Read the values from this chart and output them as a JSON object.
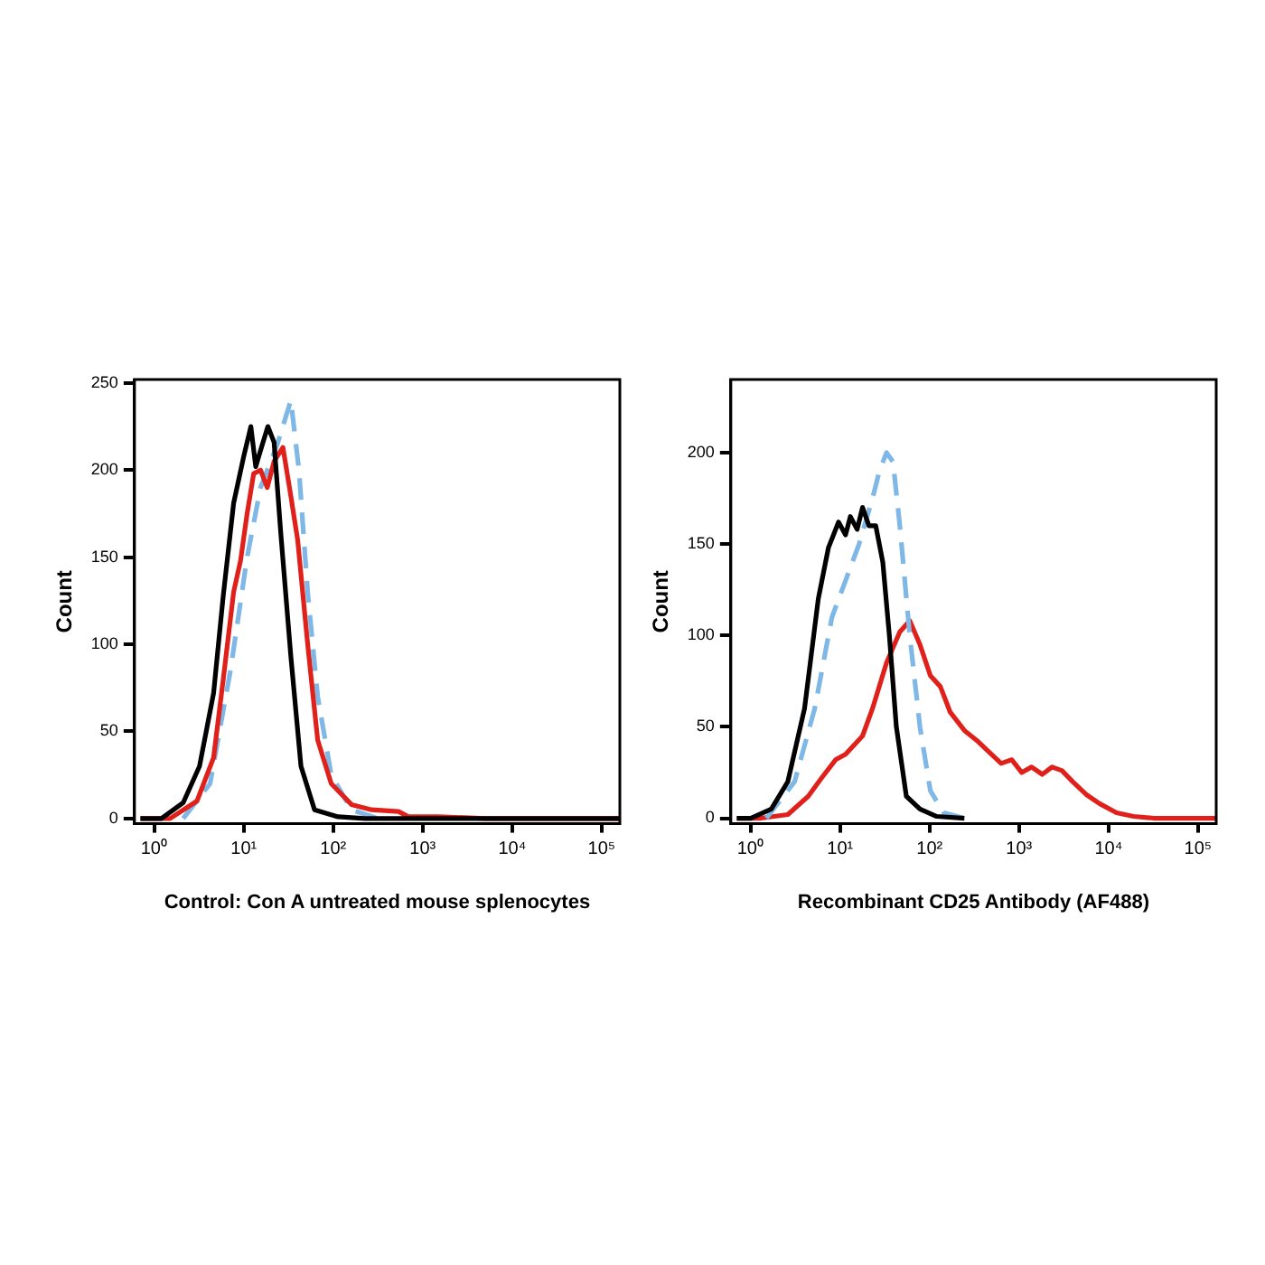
{
  "chart_data": [
    {
      "type": "line",
      "xlabel": "Control: Con A untreated mouse splenocytes",
      "ylabel": "Count",
      "log": "x",
      "grid": false,
      "legend": false,
      "marker": "none",
      "xlim": [
        0.63,
        160000
      ],
      "xticks": [
        {
          "value": 1,
          "label": "10⁰"
        },
        {
          "value": 10,
          "label": "10¹"
        },
        {
          "value": 100,
          "label": "10²"
        },
        {
          "value": 1000,
          "label": "10³"
        },
        {
          "value": 10000,
          "label": "10⁴"
        },
        {
          "value": 100000,
          "label": "10⁵"
        }
      ],
      "ylim": [
        -3,
        252
      ],
      "yticks": [
        0,
        50,
        100,
        150,
        200,
        250
      ],
      "series": [
        {
          "color": "#000000",
          "line_style": "solid",
          "x": [
            0.7,
            1.2,
            2.1,
            3.2,
            4.6,
            5.9,
            7.7,
            10,
            12,
            13.6,
            16.2,
            18.6,
            21.8,
            25.9,
            33.6,
            43.6,
            61.8,
            113,
            226,
            160000
          ],
          "values": [
            0,
            0,
            9,
            30,
            72,
            128,
            181,
            208,
            225,
            202,
            215,
            225,
            216,
            164,
            93,
            30,
            5,
            1,
            0,
            0
          ]
        },
        {
          "color": "#e0201b",
          "line_style": "solid",
          "x": [
            0.7,
            1.5,
            3,
            4.6,
            5.9,
            7.7,
            9.2,
            10.9,
            12.9,
            15.4,
            18.3,
            21.8,
            27.4,
            33.6,
            40,
            51.8,
            67,
            95,
            160,
            269,
            537,
            692,
            1500,
            5100,
            160000
          ],
          "values": [
            0,
            0,
            10,
            35,
            80,
            130,
            148,
            175,
            198,
            200,
            190,
            205,
            213,
            185,
            160,
            100,
            45,
            20,
            8,
            5,
            4,
            1,
            1,
            0,
            0
          ]
        },
        {
          "color": "#7fb8e6",
          "line_style": "dashed",
          "x": [
            2.1,
            4.2,
            7.1,
            10.9,
            15.4,
            23.8,
            33.6,
            41.4,
            51.8,
            67,
            95,
            160,
            316
          ],
          "values": [
            0,
            20,
            85,
            150,
            190,
            215,
            240,
            200,
            130,
            70,
            25,
            5,
            0
          ]
        }
      ]
    },
    {
      "type": "line",
      "xlabel": "Recombinant CD25 Antibody (AF488)",
      "ylabel": "Count",
      "log": "x",
      "grid": false,
      "legend": false,
      "marker": "none",
      "xlim": [
        0.63,
        160000
      ],
      "xticks": [
        {
          "value": 1,
          "label": "10⁰"
        },
        {
          "value": 10,
          "label": "10¹"
        },
        {
          "value": 100,
          "label": "10²"
        },
        {
          "value": 1000,
          "label": "10³"
        },
        {
          "value": 10000,
          "label": "10⁴"
        },
        {
          "value": 100000,
          "label": "10⁵"
        }
      ],
      "ylim": [
        -3,
        240
      ],
      "yticks": [
        0,
        50,
        100,
        150,
        200
      ],
      "series": [
        {
          "color": "#000000",
          "line_style": "solid",
          "x": [
            0.7,
            1,
            1.7,
            2.6,
            4,
            5.7,
            7.4,
            9.6,
            11.5,
            13,
            15.5,
            17.8,
            21,
            25,
            30,
            35.5,
            42.5,
            55,
            78,
            120,
            245
          ],
          "values": [
            0,
            0,
            5,
            20,
            60,
            120,
            148,
            162,
            155,
            165,
            158,
            170,
            160,
            160,
            140,
            100,
            50,
            12,
            5,
            1,
            0
          ]
        },
        {
          "color": "#7fb8e6",
          "line_style": "dashed",
          "x": [
            1.5,
            3.1,
            5.2,
            8.1,
            11.5,
            16.3,
            23,
            27.5,
            33,
            39,
            46.5,
            60,
            78,
            102,
            144,
            245
          ],
          "values": [
            0,
            20,
            60,
            110,
            130,
            150,
            175,
            190,
            200,
            195,
            160,
            100,
            50,
            15,
            3,
            0
          ]
        },
        {
          "color": "#e0201b",
          "line_style": "solid",
          "x": [
            0.7,
            1.3,
            2.6,
            4.4,
            6.2,
            8.9,
            11.5,
            17.8,
            23,
            33,
            46.5,
            60,
            78,
            102,
            132,
            170,
            245,
            347,
            490,
            631,
            830,
            1070,
            1380,
            1820,
            2340,
            3020,
            3980,
            5620,
            7940,
            12300,
            19000,
            32000,
            160000
          ],
          "values": [
            0,
            0,
            2,
            12,
            22,
            32,
            35,
            45,
            60,
            85,
            102,
            108,
            95,
            78,
            72,
            58,
            48,
            42,
            35,
            30,
            32,
            25,
            28,
            24,
            28,
            26,
            20,
            13,
            8,
            3,
            1,
            0,
            0
          ]
        }
      ]
    }
  ]
}
